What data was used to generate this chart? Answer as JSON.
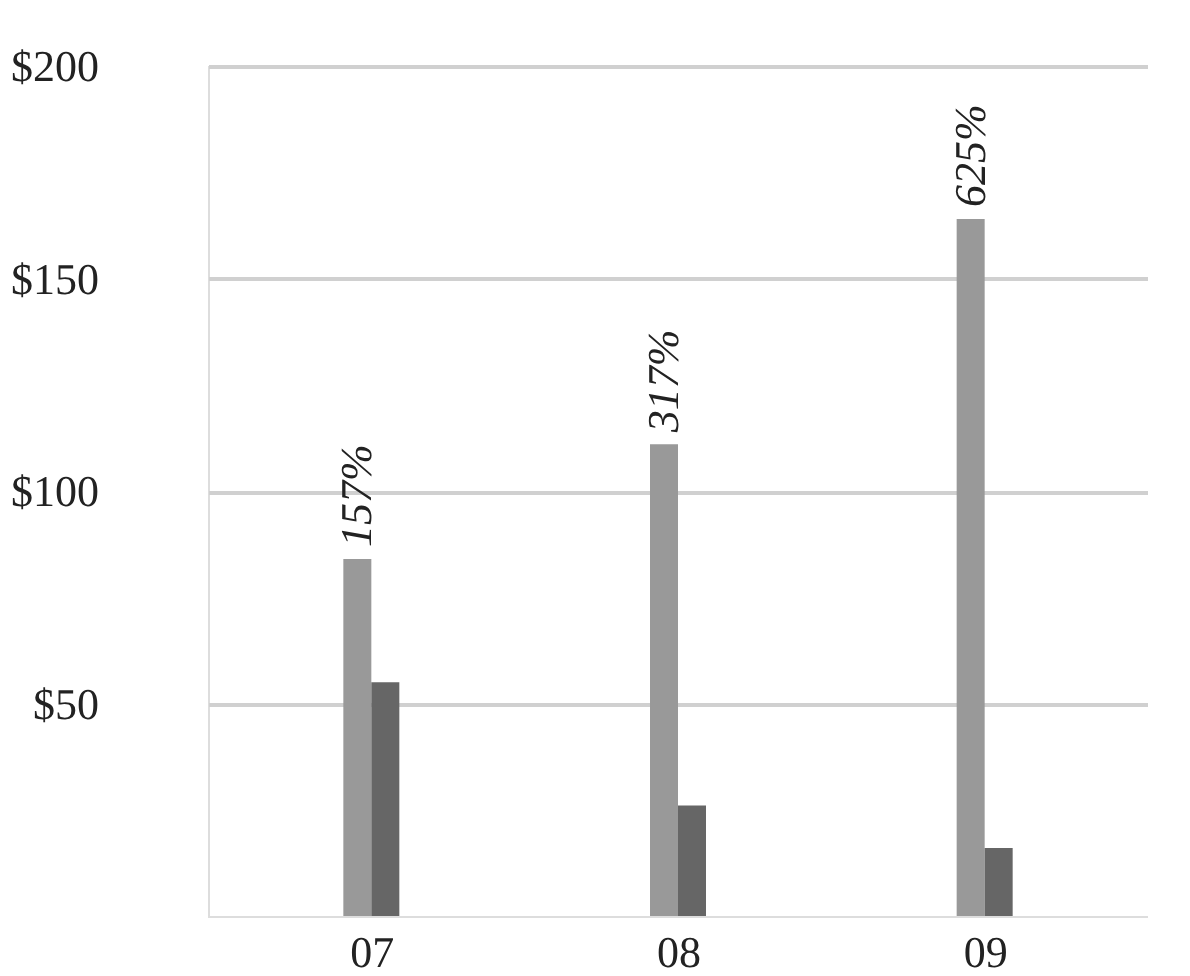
{
  "chart_data": {
    "type": "bar",
    "categories": [
      "07",
      "08",
      "09"
    ],
    "series": [
      {
        "color": "#999999",
        "values": [
          84,
          111,
          164
        ]
      },
      {
        "color": "#666666",
        "values": [
          55,
          26,
          16
        ]
      }
    ],
    "annotations": [
      {
        "text": "157%",
        "x": "07",
        "y": 84
      },
      {
        "text": "317%",
        "x": "08",
        "y": 111
      },
      {
        "text": "625%",
        "x": "09",
        "y": 164
      }
    ],
    "ylim": [
      0,
      200
    ],
    "yticks": [
      {
        "value": 50,
        "label": "$50"
      },
      {
        "value": 100,
        "label": "$100"
      },
      {
        "value": 150,
        "label": "$150"
      },
      {
        "value": 200,
        "label": "$200"
      }
    ],
    "grid": "y"
  }
}
